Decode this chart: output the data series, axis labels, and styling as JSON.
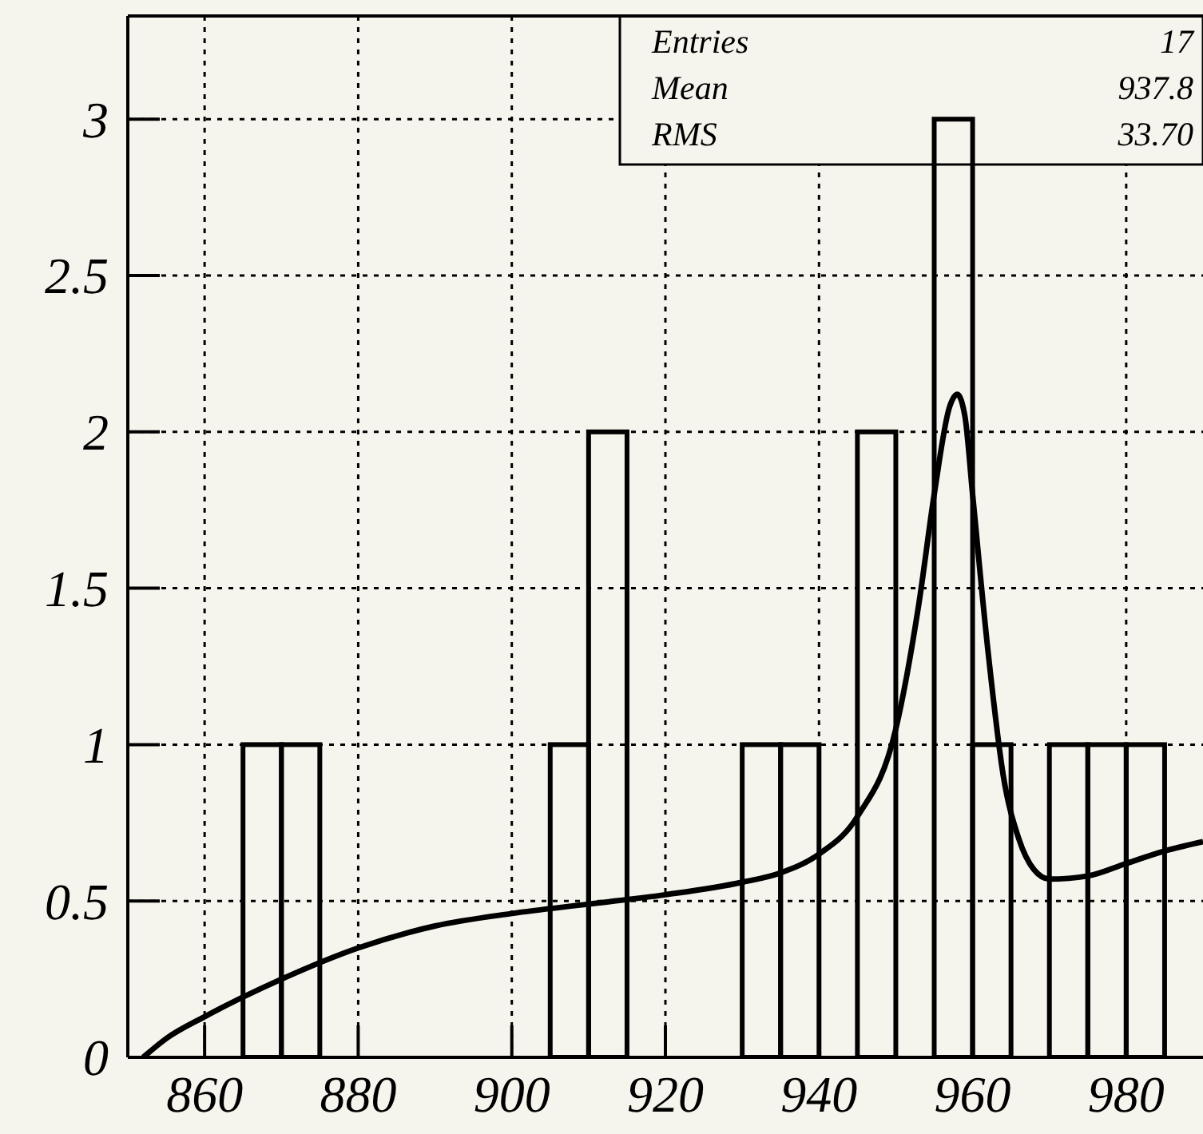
{
  "chart_data": {
    "type": "histogram",
    "xlim": [
      850,
      990
    ],
    "ylim": [
      0,
      3.33
    ],
    "xticks": [
      860,
      880,
      900,
      920,
      940,
      960,
      980
    ],
    "yticks": [
      0,
      0.5,
      1,
      1.5,
      2,
      2.5,
      3
    ],
    "grid": true,
    "annotations": [
      "Entries",
      "17",
      "Mean",
      "937.8",
      "RMS",
      "33.70"
    ],
    "series": [
      {
        "color": "#000000",
        "bins": [
          850,
          855,
          860,
          865,
          870,
          875,
          880,
          885,
          890,
          895,
          900,
          905,
          910,
          915,
          920,
          925,
          930,
          935,
          940,
          945,
          950,
          955,
          960,
          965,
          970,
          975,
          980,
          985,
          990
        ],
        "values": [
          0,
          0,
          0,
          1,
          1,
          0,
          0,
          0,
          0,
          0,
          0,
          1,
          2,
          0,
          0,
          0,
          1,
          1,
          0,
          2,
          0,
          3,
          1,
          0,
          1,
          1,
          1,
          0
        ]
      },
      {
        "type": "line",
        "color": "#000000",
        "x": [
          852,
          855,
          860,
          870,
          880,
          890,
          900,
          910,
          920,
          930,
          935,
          940,
          945,
          950,
          953,
          955,
          957,
          958,
          959,
          960,
          962,
          964,
          966,
          968,
          970,
          975,
          980,
          985,
          990
        ],
        "values": [
          0,
          0.06,
          0.13,
          0.25,
          0.35,
          0.42,
          0.46,
          0.49,
          0.52,
          0.56,
          0.59,
          0.65,
          0.77,
          1.05,
          1.45,
          1.8,
          2.08,
          2.12,
          2.05,
          1.8,
          1.3,
          0.9,
          0.7,
          0.6,
          0.57,
          0.58,
          0.62,
          0.66,
          0.69
        ]
      }
    ]
  }
}
